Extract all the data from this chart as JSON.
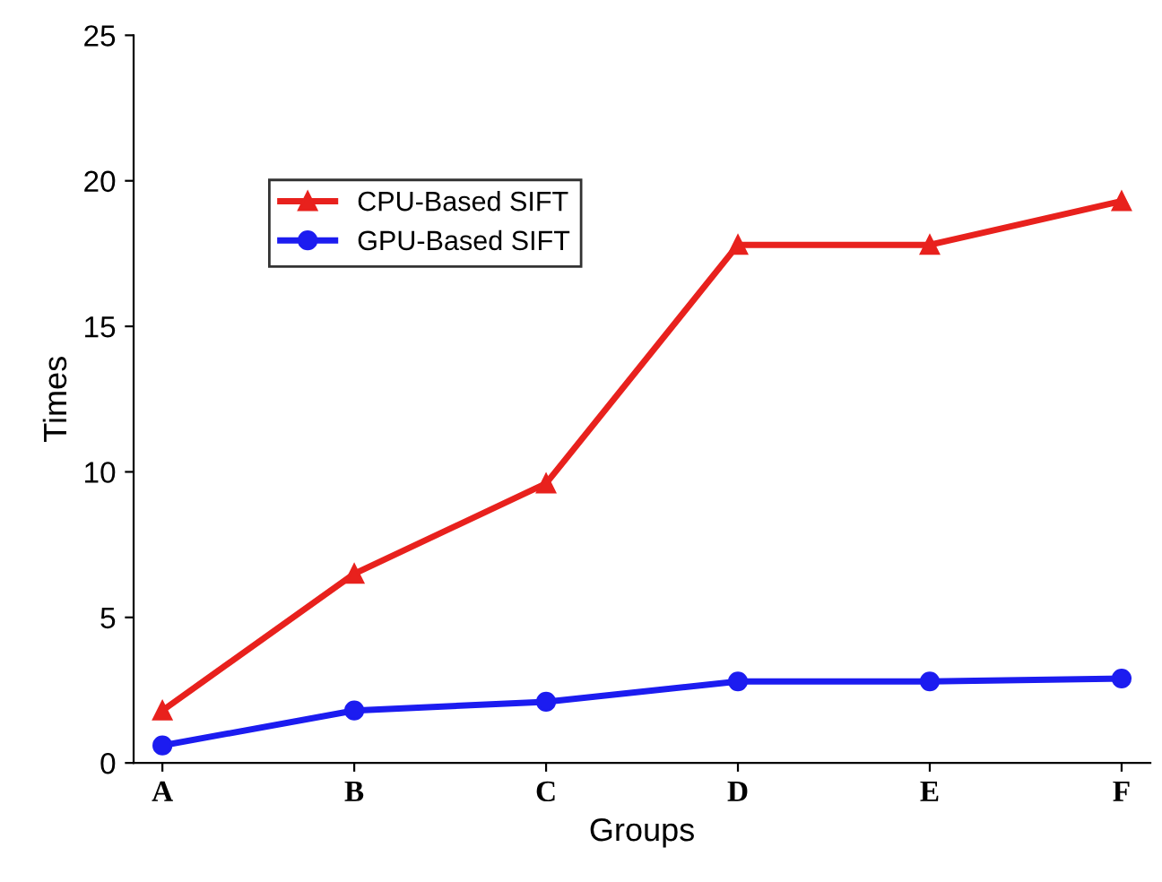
{
  "chart_data": {
    "type": "line",
    "xlabel": "Groups",
    "ylabel": "Times",
    "categories": [
      "A",
      "B",
      "C",
      "D",
      "E",
      "F"
    ],
    "series": [
      {
        "name": "CPU-Based SIFT",
        "color": "#e8211d",
        "marker": "triangle",
        "values": [
          1.8,
          6.5,
          9.6,
          17.8,
          17.8,
          19.3
        ]
      },
      {
        "name": "GPU-Based SIFT",
        "color": "#1c1cf0",
        "marker": "circle",
        "values": [
          0.6,
          1.8,
          2.1,
          2.8,
          2.8,
          2.9
        ]
      }
    ],
    "ylim": [
      0,
      25
    ],
    "yticks": [
      0,
      5,
      10,
      15,
      20,
      25
    ],
    "grid": false,
    "legend": "top left",
    "line_style": "solid"
  }
}
